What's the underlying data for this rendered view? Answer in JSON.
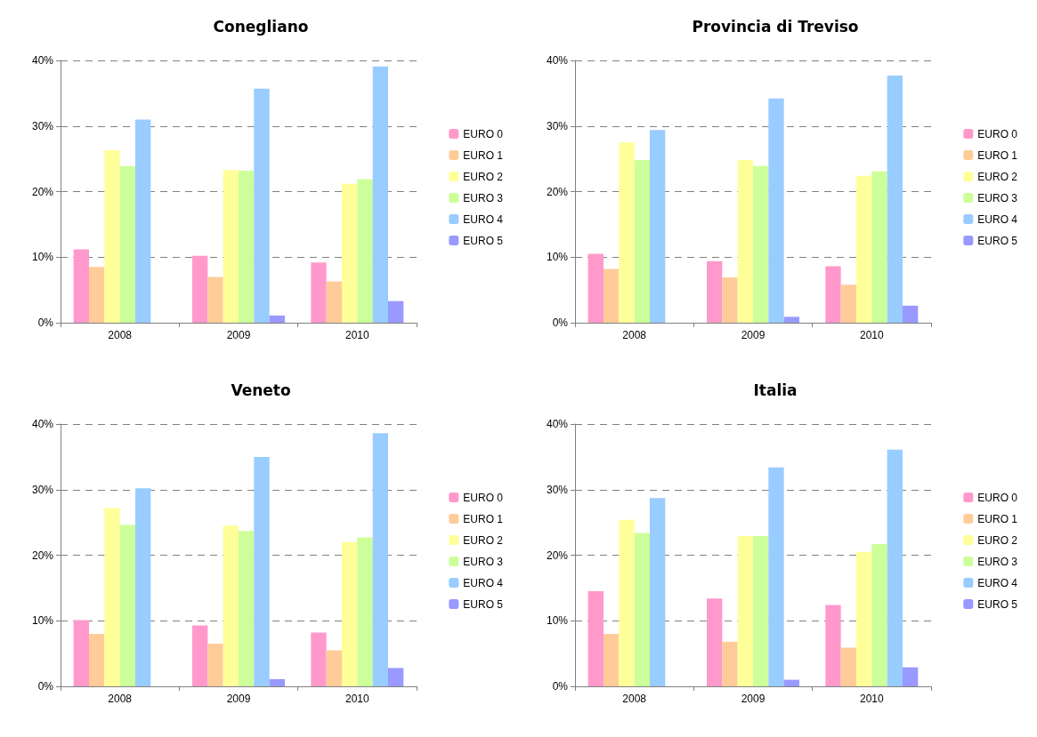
{
  "chart_data": [
    {
      "type": "bar",
      "title": "Conegliano",
      "categories": [
        "2008",
        "2009",
        "2010"
      ],
      "ylim": [
        0,
        40
      ],
      "yticks": [
        {
          "value": 0,
          "label": "0%"
        },
        {
          "value": 10,
          "label": "10%"
        },
        {
          "value": 20,
          "label": "20%"
        },
        {
          "value": 30,
          "label": "30%"
        },
        {
          "value": 40,
          "label": "40%"
        }
      ],
      "grid": "y",
      "legend": "right",
      "series": [
        {
          "name": "EURO 0",
          "color": "#ff99cc",
          "values": [
            11.2,
            10.2,
            9.2
          ]
        },
        {
          "name": "EURO 1",
          "color": "#ffcc99",
          "values": [
            8.5,
            7.0,
            6.3
          ]
        },
        {
          "name": "EURO 2",
          "color": "#ffff99",
          "values": [
            26.3,
            23.3,
            21.2
          ]
        },
        {
          "name": "EURO 3",
          "color": "#ccff99",
          "values": [
            23.9,
            23.2,
            21.9
          ]
        },
        {
          "name": "EURO 4",
          "color": "#99ccff",
          "values": [
            31.0,
            35.7,
            39.1
          ]
        },
        {
          "name": "EURO 5",
          "color": "#9999ff",
          "values": [
            0,
            1.1,
            3.3
          ]
        }
      ]
    },
    {
      "type": "bar",
      "title": "Provincia di Treviso",
      "categories": [
        "2008",
        "2009",
        "2010"
      ],
      "ylim": [
        0,
        40
      ],
      "yticks": [
        {
          "value": 0,
          "label": "0%"
        },
        {
          "value": 10,
          "label": "10%"
        },
        {
          "value": 20,
          "label": "20%"
        },
        {
          "value": 30,
          "label": "30%"
        },
        {
          "value": 40,
          "label": "40%"
        }
      ],
      "grid": "y",
      "legend": "right",
      "series": [
        {
          "name": "EURO 0",
          "color": "#ff99cc",
          "values": [
            10.5,
            9.4,
            8.6
          ]
        },
        {
          "name": "EURO 1",
          "color": "#ffcc99",
          "values": [
            8.2,
            6.9,
            5.8
          ]
        },
        {
          "name": "EURO 2",
          "color": "#ffff99",
          "values": [
            27.5,
            24.8,
            22.4
          ]
        },
        {
          "name": "EURO 3",
          "color": "#ccff99",
          "values": [
            24.8,
            23.9,
            23.1
          ]
        },
        {
          "name": "EURO 4",
          "color": "#99ccff",
          "values": [
            29.4,
            34.2,
            37.7
          ]
        },
        {
          "name": "EURO 5",
          "color": "#9999ff",
          "values": [
            0,
            0.9,
            2.6
          ]
        }
      ]
    },
    {
      "type": "bar",
      "title": "Veneto",
      "categories": [
        "2008",
        "2009",
        "2010"
      ],
      "ylim": [
        0,
        40
      ],
      "yticks": [
        {
          "value": 0,
          "label": "0%"
        },
        {
          "value": 10,
          "label": "10%"
        },
        {
          "value": 20,
          "label": "20%"
        },
        {
          "value": 30,
          "label": "30%"
        },
        {
          "value": 40,
          "label": "40%"
        }
      ],
      "grid": "y",
      "legend": "right",
      "series": [
        {
          "name": "EURO 0",
          "color": "#ff99cc",
          "values": [
            10.1,
            9.3,
            8.2
          ]
        },
        {
          "name": "EURO 1",
          "color": "#ffcc99",
          "values": [
            8.0,
            6.5,
            5.5
          ]
        },
        {
          "name": "EURO 2",
          "color": "#ffff99",
          "values": [
            27.2,
            24.5,
            22.0
          ]
        },
        {
          "name": "EURO 3",
          "color": "#ccff99",
          "values": [
            24.6,
            23.7,
            22.7
          ]
        },
        {
          "name": "EURO 4",
          "color": "#99ccff",
          "values": [
            30.2,
            35.0,
            38.6
          ]
        },
        {
          "name": "EURO 5",
          "color": "#9999ff",
          "values": [
            0,
            1.1,
            2.8
          ]
        }
      ]
    },
    {
      "type": "bar",
      "title": "Italia",
      "categories": [
        "2008",
        "2009",
        "2010"
      ],
      "ylim": [
        0,
        40
      ],
      "yticks": [
        {
          "value": 0,
          "label": "0%"
        },
        {
          "value": 10,
          "label": "10%"
        },
        {
          "value": 20,
          "label": "20%"
        },
        {
          "value": 30,
          "label": "30%"
        },
        {
          "value": 40,
          "label": "40%"
        }
      ],
      "grid": "y",
      "legend": "right",
      "series": [
        {
          "name": "EURO 0",
          "color": "#ff99cc",
          "values": [
            14.5,
            13.4,
            12.4
          ]
        },
        {
          "name": "EURO 1",
          "color": "#ffcc99",
          "values": [
            8.0,
            6.8,
            5.9
          ]
        },
        {
          "name": "EURO 2",
          "color": "#ffff99",
          "values": [
            25.4,
            22.9,
            20.5
          ]
        },
        {
          "name": "EURO 3",
          "color": "#ccff99",
          "values": [
            23.4,
            22.9,
            21.7
          ]
        },
        {
          "name": "EURO 4",
          "color": "#99ccff",
          "values": [
            28.7,
            33.4,
            36.1
          ]
        },
        {
          "name": "EURO 5",
          "color": "#9999ff",
          "values": [
            0,
            1.0,
            2.9
          ]
        }
      ]
    }
  ]
}
